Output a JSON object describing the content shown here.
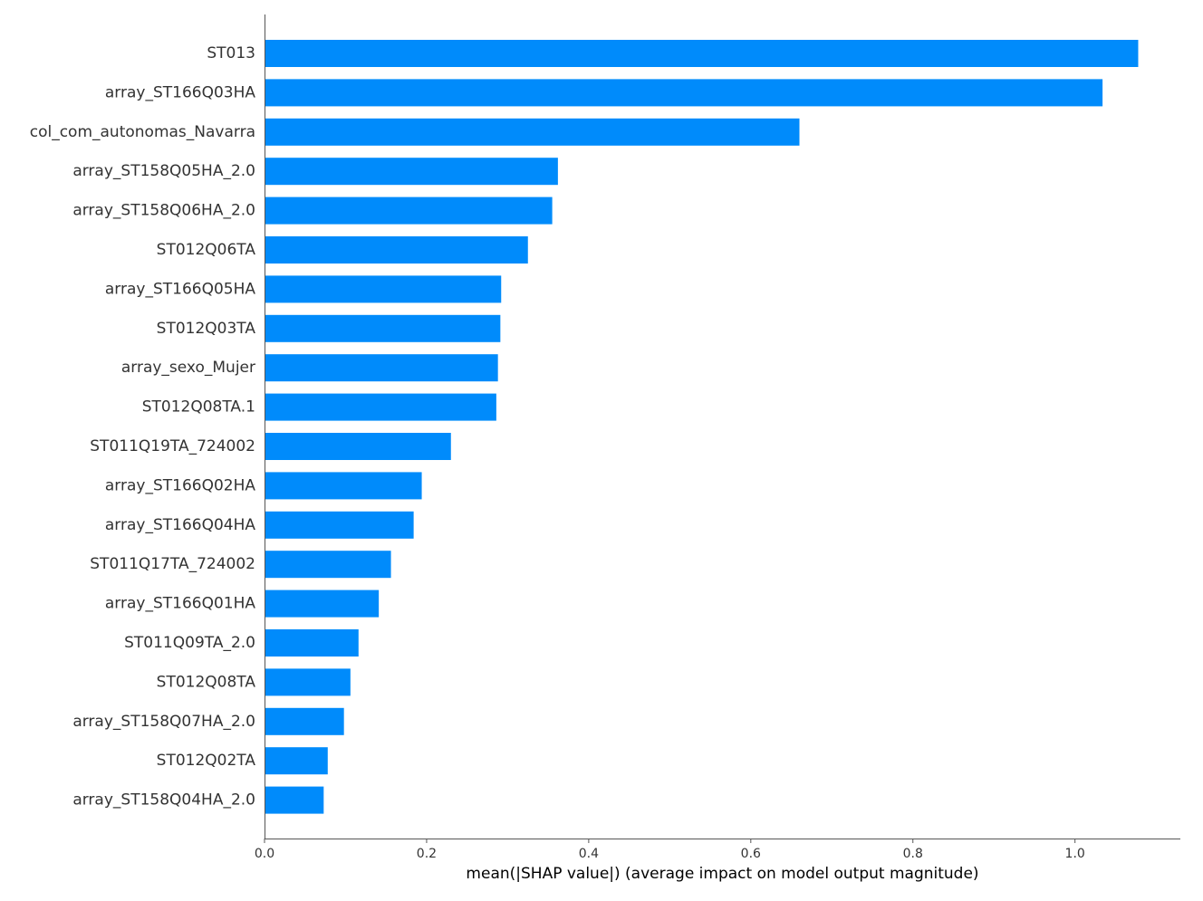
{
  "chart_data": {
    "type": "bar",
    "orientation": "horizontal",
    "xlabel": "mean(|SHAP value|) (average impact on model output magnitude)",
    "xlim": [
      0,
      1.13
    ],
    "xticks": [
      0.0,
      0.2,
      0.4,
      0.6,
      0.8,
      1.0
    ],
    "xtick_labels": [
      "0.0",
      "0.2",
      "0.4",
      "0.6",
      "0.8",
      "1.0"
    ],
    "grid": false,
    "bar_color": "#008bfb",
    "categories": [
      "ST013",
      "array_ST166Q03HA",
      "col_com_autonomas_Navarra",
      "array_ST158Q05HA_2.0",
      "array_ST158Q06HA_2.0",
      "ST012Q06TA",
      "array_ST166Q05HA",
      "ST012Q03TA",
      "array_sexo_Mujer",
      "ST012Q08TA.1",
      "ST011Q19TA_724002",
      "array_ST166Q02HA",
      "array_ST166Q04HA",
      "ST011Q17TA_724002",
      "array_ST166Q01HA",
      "ST011Q09TA_2.0",
      "ST012Q08TA",
      "array_ST158Q07HA_2.0",
      "ST012Q02TA",
      "array_ST158Q04HA_2.0"
    ],
    "values": [
      1.078,
      1.034,
      0.66,
      0.362,
      0.355,
      0.325,
      0.292,
      0.291,
      0.288,
      0.286,
      0.23,
      0.194,
      0.184,
      0.156,
      0.141,
      0.116,
      0.106,
      0.098,
      0.078,
      0.073
    ]
  }
}
